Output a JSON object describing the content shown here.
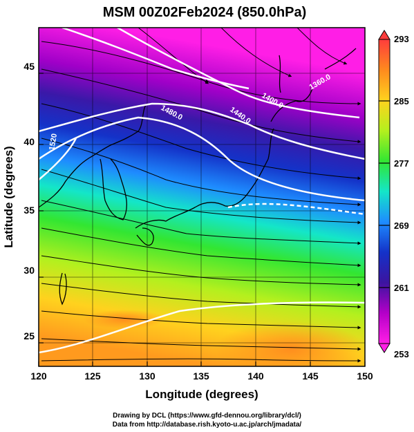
{
  "title": "MSM 00Z02Feb2024 (850.0hPa)",
  "xlabel": "Longitude (degrees)",
  "ylabel": "Latitude  (degrees)",
  "x_ticks": [
    "120",
    "125",
    "130",
    "135",
    "140",
    "145",
    "150"
  ],
  "y_ticks": [
    "25",
    "30",
    "35",
    "40",
    "45"
  ],
  "colorbar_ticks": [
    "293",
    "285",
    "277",
    "269",
    "261",
    "253"
  ],
  "colorbar_colors": [
    "#ff3c3c",
    "#ff8a1e",
    "#ffd21e",
    "#b4f01e",
    "#32e632",
    "#14e6c8",
    "#1e8cff",
    "#1432c8",
    "#3c14a0",
    "#b400c8",
    "#ff1ee6"
  ],
  "contour_labels": [
    "1480.0",
    "1440.0",
    "1400.0",
    "1360.0",
    "1520"
  ],
  "credits": {
    "line1": "Drawing by DCL (https://www.gfd-dennou.org/library/dcl/)",
    "line2": "Data from http://database.rish.kyoto-u.ac.jp/arch/jmadata/"
  },
  "chart_data": {
    "type": "heatmap",
    "title": "MSM 00Z02Feb2024 (850.0hPa)",
    "xlabel": "Longitude (degrees)",
    "ylabel": "Latitude  (degrees)",
    "xlim": [
      120,
      150
    ],
    "ylim": [
      22.5,
      47.5
    ],
    "colorbar_range": [
      253,
      293
    ],
    "contour_levels": [
      1360.0,
      1400.0,
      1440.0,
      1480.0,
      1520
    ],
    "grid": true
  }
}
